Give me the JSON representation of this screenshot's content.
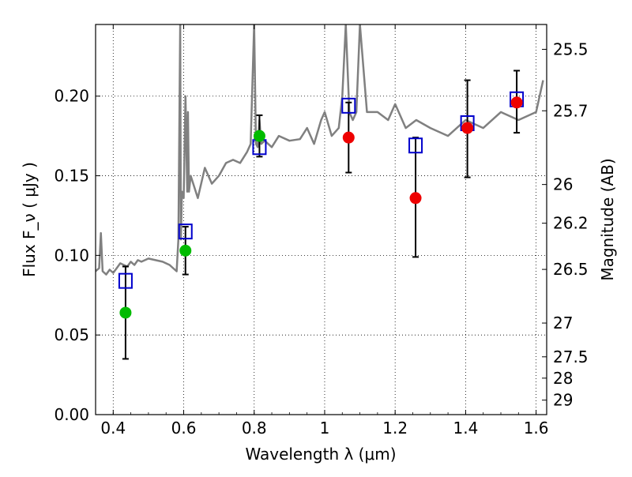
{
  "chart_data": {
    "type": "scatter",
    "xlabel": "Wavelength  λ (μm)",
    "ylabel": "Flux  F_ν  ( μJy )",
    "y2label": "Magnitude (AB)",
    "xlim": [
      0.35,
      1.63
    ],
    "ylim": [
      0.0,
      0.245
    ],
    "grid": true,
    "x_ticks": [
      {
        "value": 0.4,
        "label": "0.4"
      },
      {
        "value": 0.6,
        "label": "0.6"
      },
      {
        "value": 0.8,
        "label": "0.8"
      },
      {
        "value": 1.0,
        "label": "1"
      },
      {
        "value": 1.2,
        "label": "1.2"
      },
      {
        "value": 1.4,
        "label": "1.4"
      },
      {
        "value": 1.6,
        "label": "1.6"
      }
    ],
    "y_ticks": [
      {
        "value": 0.0,
        "label": "0.00"
      },
      {
        "value": 0.05,
        "label": "0.05"
      },
      {
        "value": 0.1,
        "label": "0.10"
      },
      {
        "value": 0.15,
        "label": "0.15"
      },
      {
        "value": 0.2,
        "label": "0.20"
      }
    ],
    "y2_ticks": [
      {
        "flux": 0.2294,
        "label": "25.5"
      },
      {
        "flux": 0.1908,
        "label": "25.7"
      },
      {
        "flux": 0.1445,
        "label": "26"
      },
      {
        "flux": 0.1202,
        "label": "26.2"
      },
      {
        "flux": 0.0912,
        "label": "26.5"
      },
      {
        "flux": 0.0575,
        "label": "27"
      },
      {
        "flux": 0.0363,
        "label": "27.5"
      },
      {
        "flux": 0.0229,
        "label": "28"
      },
      {
        "flux": 0.0091,
        "label": "29"
      }
    ],
    "colors": {
      "spectrum": "#808080",
      "model_box": "#0000cc",
      "green_point": "#00bb00",
      "red_point": "#ee0000",
      "errorbar": "#000000"
    },
    "series": [
      {
        "kind": "spectrum_line",
        "x": [
          0.35,
          0.36,
          0.365,
          0.37,
          0.38,
          0.39,
          0.4,
          0.41,
          0.42,
          0.43,
          0.44,
          0.45,
          0.46,
          0.47,
          0.48,
          0.5,
          0.52,
          0.54,
          0.56,
          0.57,
          0.58,
          0.585,
          0.59,
          0.592,
          0.595,
          0.6,
          0.605,
          0.61,
          0.612,
          0.615,
          0.62,
          0.64,
          0.66,
          0.68,
          0.7,
          0.72,
          0.74,
          0.76,
          0.78,
          0.79,
          0.8,
          0.805,
          0.81,
          0.815,
          0.82,
          0.83,
          0.85,
          0.87,
          0.9,
          0.93,
          0.95,
          0.97,
          0.99,
          1.0,
          1.02,
          1.04,
          1.05,
          1.06,
          1.07,
          1.08,
          1.09,
          1.1,
          1.12,
          1.15,
          1.18,
          1.2,
          1.23,
          1.26,
          1.3,
          1.35,
          1.4,
          1.45,
          1.5,
          1.55,
          1.6,
          1.62
        ],
        "y": [
          0.09,
          0.092,
          0.114,
          0.09,
          0.088,
          0.091,
          0.089,
          0.092,
          0.095,
          0.094,
          0.093,
          0.096,
          0.094,
          0.097,
          0.096,
          0.098,
          0.097,
          0.096,
          0.094,
          0.092,
          0.09,
          0.11,
          0.245,
          0.11,
          0.14,
          0.136,
          0.2,
          0.14,
          0.19,
          0.14,
          0.15,
          0.136,
          0.155,
          0.145,
          0.15,
          0.158,
          0.16,
          0.158,
          0.165,
          0.17,
          0.245,
          0.17,
          0.168,
          0.185,
          0.17,
          0.172,
          0.168,
          0.175,
          0.172,
          0.173,
          0.18,
          0.17,
          0.185,
          0.19,
          0.175,
          0.18,
          0.2,
          0.245,
          0.19,
          0.185,
          0.19,
          0.245,
          0.19,
          0.19,
          0.185,
          0.195,
          0.18,
          0.185,
          0.18,
          0.175,
          0.185,
          0.18,
          0.19,
          0.185,
          0.19,
          0.21
        ]
      },
      {
        "kind": "model_boxes",
        "x": [
          0.435,
          0.605,
          0.815,
          1.068,
          1.258,
          1.405,
          1.545
        ],
        "y": [
          0.084,
          0.115,
          0.168,
          0.194,
          0.169,
          0.183,
          0.198
        ]
      },
      {
        "kind": "green_points",
        "x": [
          0.435,
          0.605,
          0.815
        ],
        "y": [
          0.064,
          0.103,
          0.175
        ]
      },
      {
        "kind": "red_points",
        "x": [
          1.068,
          1.258,
          1.405,
          1.545
        ],
        "y": [
          0.174,
          0.136,
          0.18,
          0.196
        ]
      },
      {
        "kind": "errorbars",
        "x": [
          0.435,
          0.605,
          0.815,
          1.068,
          1.258,
          1.405,
          1.545
        ],
        "low": [
          0.035,
          0.088,
          0.162,
          0.152,
          0.099,
          0.149,
          0.177
        ],
        "high": [
          0.093,
          0.118,
          0.188,
          0.196,
          0.174,
          0.21,
          0.216
        ]
      }
    ]
  }
}
